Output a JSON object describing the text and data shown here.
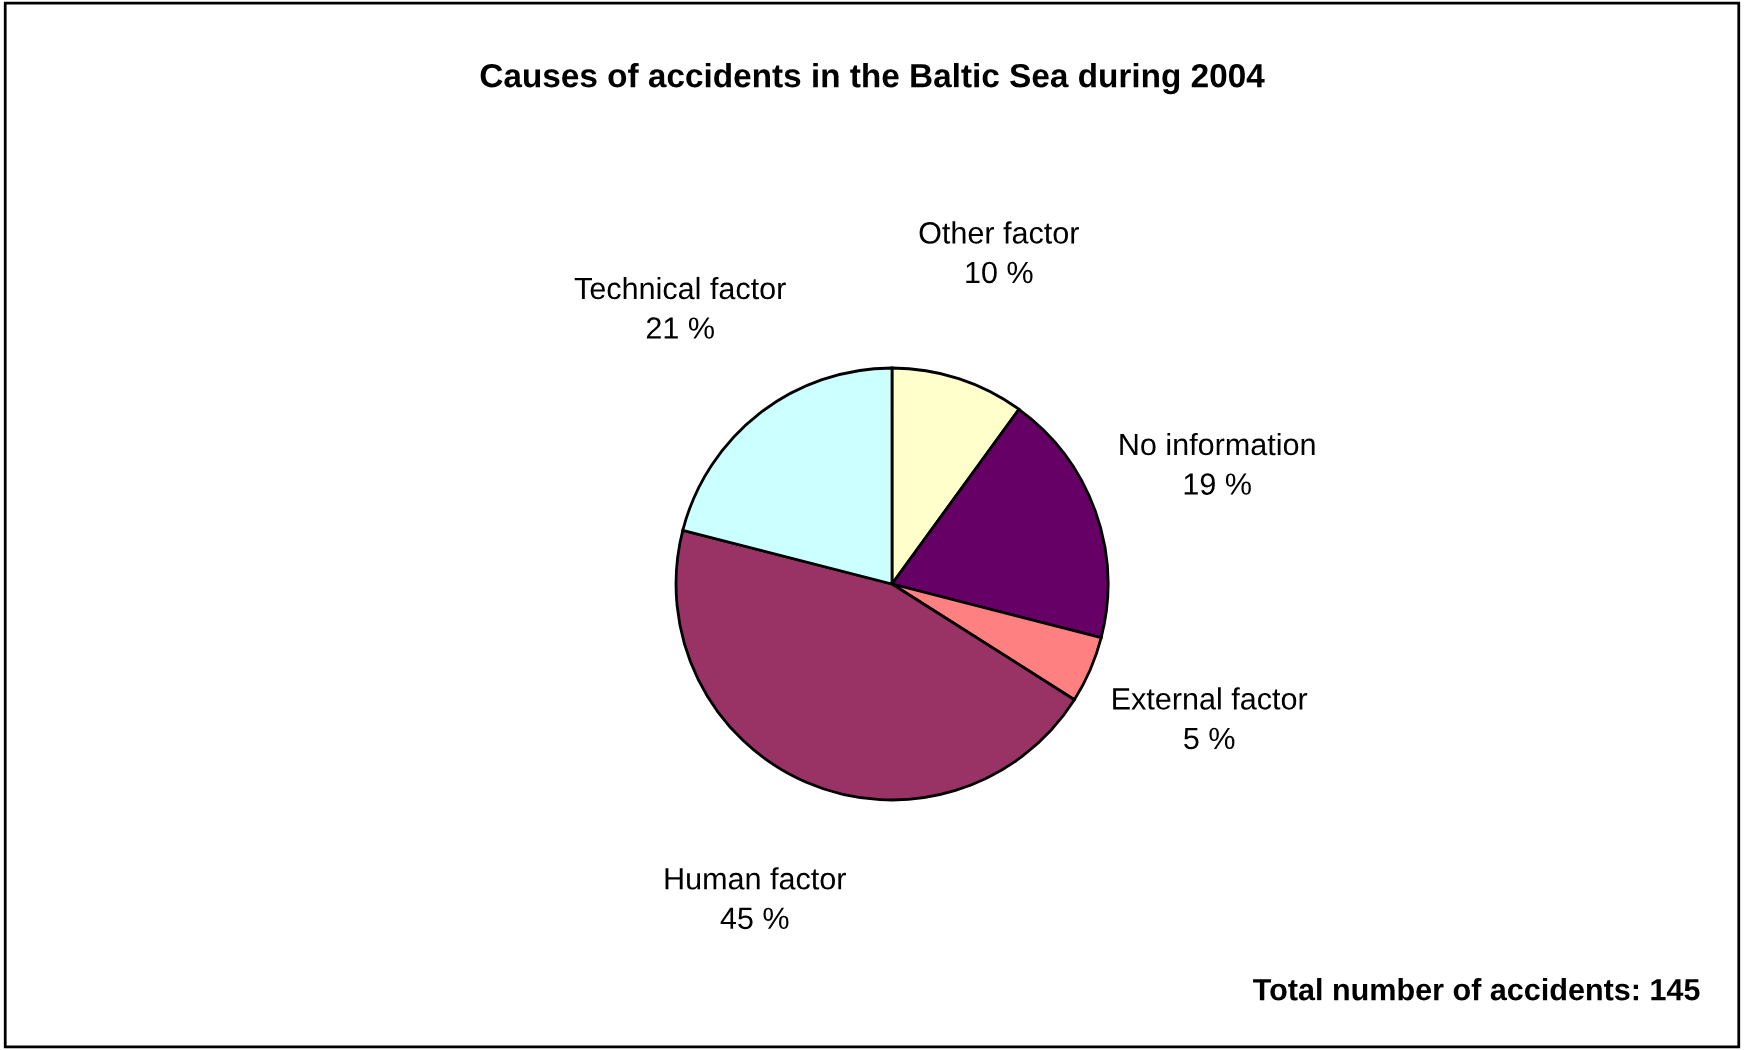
{
  "chart_data": {
    "type": "pie",
    "title": "Causes of accidents in the Baltic Sea during 2004",
    "categories": [
      "Other factor",
      "No information",
      "External factor",
      "Human factor",
      "Technical factor"
    ],
    "values": [
      10,
      19,
      5,
      45,
      21
    ],
    "value_labels": [
      "10 %",
      "19 %",
      "5 %",
      "45 %",
      "21 %"
    ],
    "colors": [
      "#ffffcc",
      "#660066",
      "#ff8080",
      "#993366",
      "#ccffff"
    ],
    "annotations": [
      "Total number of accidents: 145"
    ],
    "legend": false
  }
}
